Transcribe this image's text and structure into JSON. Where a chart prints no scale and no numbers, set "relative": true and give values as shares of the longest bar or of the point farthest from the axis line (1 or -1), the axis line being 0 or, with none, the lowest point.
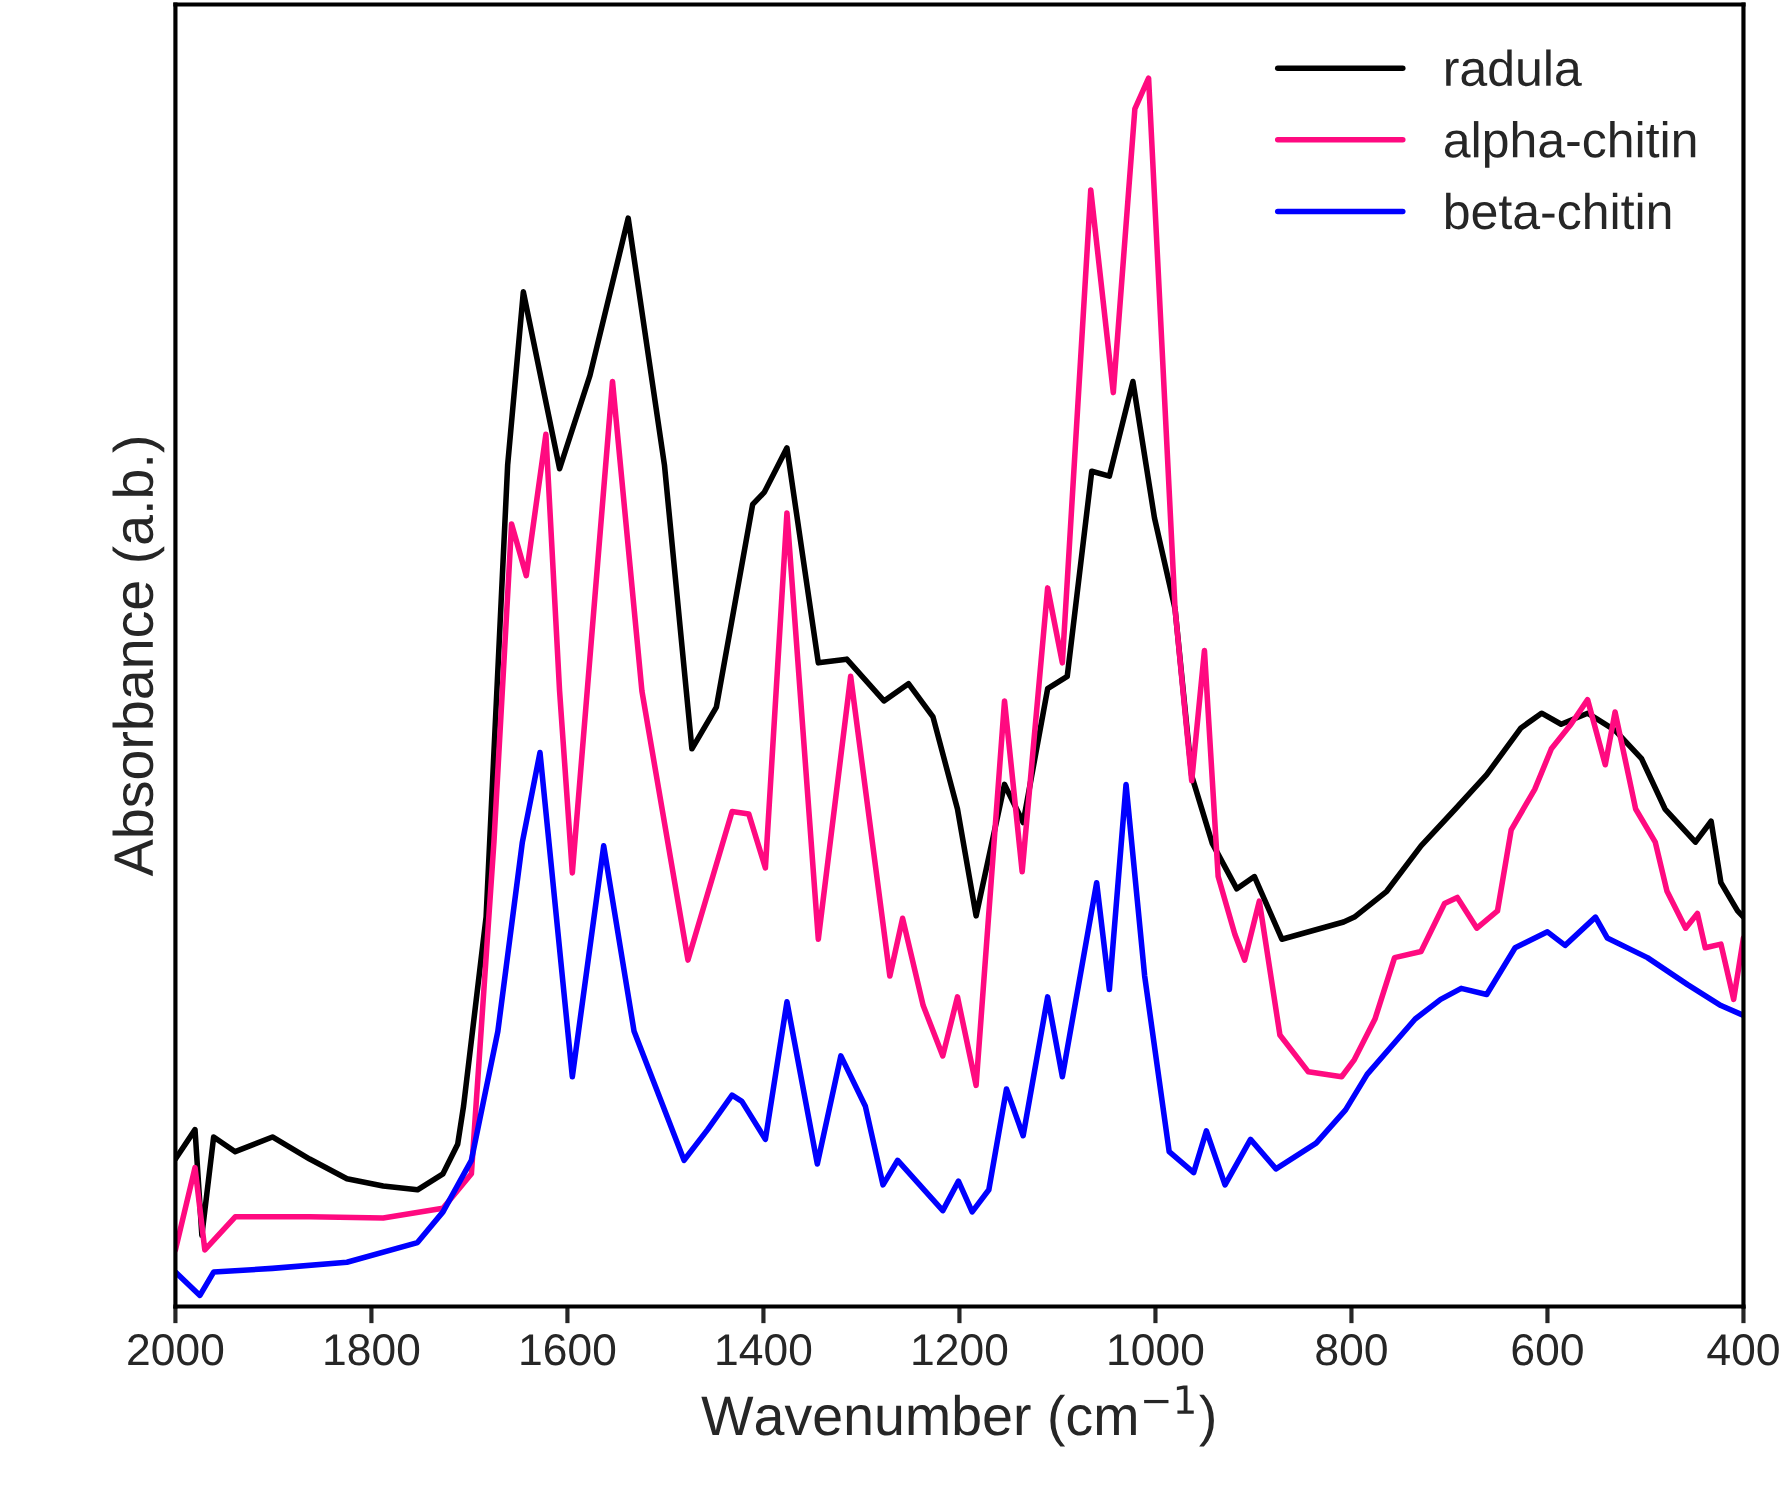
{
  "chart_data": {
    "type": "line",
    "relative": true,
    "xlabel": "Wavenumber (cm$^{−1}$)",
    "ylabel": "Absorbance (a.b.)",
    "xlim": [
      2000,
      400
    ],
    "xticks": [
      2000,
      1800,
      1600,
      1400,
      1200,
      1000,
      800,
      600,
      400
    ],
    "grid": false,
    "legend": "top right",
    "line_style": "solid",
    "marker": "none",
    "series": [
      {
        "name": "radula",
        "color": "#000000",
        "x": [
          2000,
          1980,
          1973,
          1961,
          1939,
          1901,
          1863,
          1825,
          1788,
          1753,
          1727,
          1712,
          1706,
          1683,
          1661,
          1645,
          1608,
          1577,
          1538,
          1501,
          1473,
          1448,
          1411,
          1399,
          1376,
          1344,
          1315,
          1277,
          1252,
          1227,
          1202,
          1183,
          1154,
          1135,
          1110,
          1090,
          1065,
          1047,
          1023,
          1001,
          980,
          963,
          942,
          917,
          899,
          871,
          808,
          797,
          764,
          729,
          694,
          662,
          627,
          606,
          586,
          559,
          531,
          504,
          480,
          449,
          433,
          423,
          406,
          400
        ],
        "values": [
          0.12,
          0.144,
          0.058,
          0.138,
          0.126,
          0.138,
          0.12,
          0.104,
          0.098,
          0.095,
          0.108,
          0.132,
          0.163,
          0.317,
          0.685,
          0.826,
          0.682,
          0.758,
          0.886,
          0.685,
          0.454,
          0.488,
          0.653,
          0.663,
          0.699,
          0.524,
          0.527,
          0.493,
          0.507,
          0.48,
          0.405,
          0.318,
          0.425,
          0.394,
          0.503,
          0.513,
          0.68,
          0.676,
          0.753,
          0.642,
          0.568,
          0.432,
          0.377,
          0.34,
          0.35,
          0.299,
          0.313,
          0.317,
          0.338,
          0.375,
          0.405,
          0.433,
          0.471,
          0.483,
          0.474,
          0.483,
          0.469,
          0.446,
          0.405,
          0.378,
          0.395,
          0.345,
          0.322,
          0.317
        ]
      },
      {
        "name": "alpha-chitin",
        "color": "#ff0a80",
        "x": [
          2000,
          1980,
          1970,
          1939,
          1863,
          1788,
          1727,
          1698,
          1675,
          1657,
          1642,
          1622,
          1608,
          1595,
          1554,
          1524,
          1477,
          1432,
          1415,
          1398,
          1376,
          1344,
          1311,
          1271,
          1258,
          1237,
          1217,
          1202,
          1183,
          1154,
          1136,
          1110,
          1095,
          1066,
          1043,
          1021,
          1007,
          980,
          963,
          950,
          936,
          919,
          909,
          894,
          873,
          844,
          810,
          797,
          776,
          756,
          729,
          705,
          692,
          672,
          651,
          637,
          613,
          596,
          576,
          559,
          541,
          531,
          510,
          490,
          478,
          459,
          447,
          439,
          423,
          410,
          400
        ],
        "values": [
          0.046,
          0.113,
          0.046,
          0.073,
          0.073,
          0.072,
          0.08,
          0.108,
          0.378,
          0.637,
          0.595,
          0.71,
          0.501,
          0.353,
          0.753,
          0.501,
          0.282,
          0.403,
          0.401,
          0.357,
          0.646,
          0.299,
          0.513,
          0.269,
          0.316,
          0.245,
          0.204,
          0.252,
          0.18,
          0.493,
          0.354,
          0.585,
          0.524,
          0.909,
          0.744,
          0.975,
          1.0,
          0.568,
          0.428,
          0.534,
          0.35,
          0.303,
          0.282,
          0.33,
          0.221,
          0.191,
          0.187,
          0.201,
          0.234,
          0.284,
          0.289,
          0.328,
          0.333,
          0.308,
          0.322,
          0.388,
          0.421,
          0.454,
          0.474,
          0.494,
          0.441,
          0.484,
          0.405,
          0.378,
          0.338,
          0.308,
          0.32,
          0.292,
          0.295,
          0.25,
          0.3
        ]
      },
      {
        "name": "beta-chitin",
        "color": "#0000ff",
        "x": [
          2000,
          1975,
          1961,
          1901,
          1825,
          1753,
          1727,
          1698,
          1671,
          1646,
          1628,
          1595,
          1563,
          1532,
          1481,
          1457,
          1432,
          1422,
          1398,
          1376,
          1345,
          1321,
          1296,
          1278,
          1263,
          1217,
          1201,
          1187,
          1170,
          1152,
          1135,
          1110,
          1095,
          1060,
          1047,
          1030,
          1011,
          986,
          961,
          948,
          929,
          903,
          877,
          836,
          806,
          784,
          735,
          709,
          688,
          662,
          633,
          600,
          582,
          551,
          539,
          498,
          457,
          423,
          400
        ],
        "values": [
          0.028,
          0.009,
          0.028,
          0.031,
          0.036,
          0.052,
          0.077,
          0.119,
          0.224,
          0.378,
          0.451,
          0.187,
          0.375,
          0.224,
          0.119,
          0.144,
          0.172,
          0.167,
          0.136,
          0.248,
          0.116,
          0.204,
          0.163,
          0.099,
          0.119,
          0.078,
          0.102,
          0.077,
          0.095,
          0.177,
          0.139,
          0.252,
          0.187,
          0.345,
          0.258,
          0.425,
          0.269,
          0.126,
          0.109,
          0.143,
          0.099,
          0.136,
          0.112,
          0.133,
          0.16,
          0.189,
          0.234,
          0.25,
          0.259,
          0.254,
          0.292,
          0.305,
          0.294,
          0.317,
          0.3,
          0.284,
          0.262,
          0.245,
          0.237
        ]
      }
    ]
  }
}
